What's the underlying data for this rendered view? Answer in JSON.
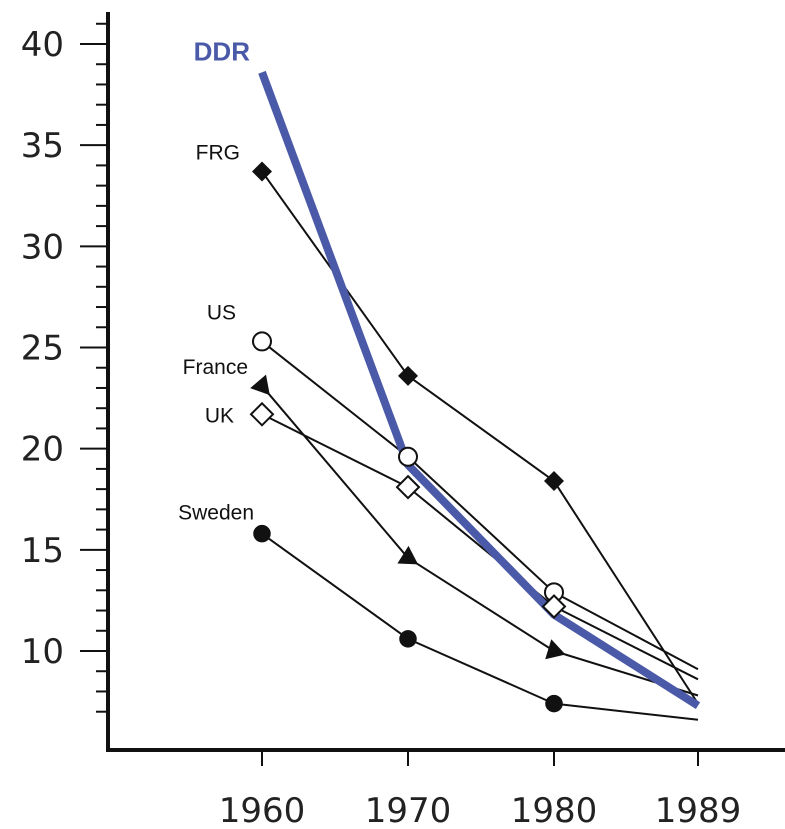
{
  "chart_data": {
    "type": "line",
    "title": "",
    "xlabel": "",
    "ylabel": "",
    "categories": [
      "1960",
      "1970",
      "1980",
      "1989"
    ],
    "x": [
      1960,
      1970,
      1980,
      1989
    ],
    "ylim": [
      7,
      41
    ],
    "yticks": [
      10,
      15,
      20,
      25,
      30,
      35,
      40
    ],
    "grid": false,
    "legend": "none",
    "series": [
      {
        "name": "DDR",
        "values": [
          38.6,
          19.2,
          11.8,
          7.3
        ],
        "marker": "none",
        "color": "#4b5aa8",
        "label_color": "#4b5aa8"
      },
      {
        "name": "FRG",
        "values": [
          33.7,
          23.6,
          18.4,
          7.4
        ],
        "marker": "filled-diamond",
        "color": "#111111"
      },
      {
        "name": "US",
        "values": [
          25.3,
          19.6,
          12.9,
          9.1
        ],
        "marker": "open-circle",
        "color": "#111111"
      },
      {
        "name": "France",
        "values": [
          23.1,
          14.6,
          10.0,
          7.8
        ],
        "marker": "filled-triangle",
        "color": "#111111"
      },
      {
        "name": "UK",
        "values": [
          21.7,
          18.1,
          12.2,
          8.6
        ],
        "marker": "open-diamond",
        "color": "#111111"
      },
      {
        "name": "Sweden",
        "values": [
          15.8,
          10.6,
          7.4,
          6.6
        ],
        "marker": "filled-circle",
        "color": "#111111"
      }
    ]
  }
}
